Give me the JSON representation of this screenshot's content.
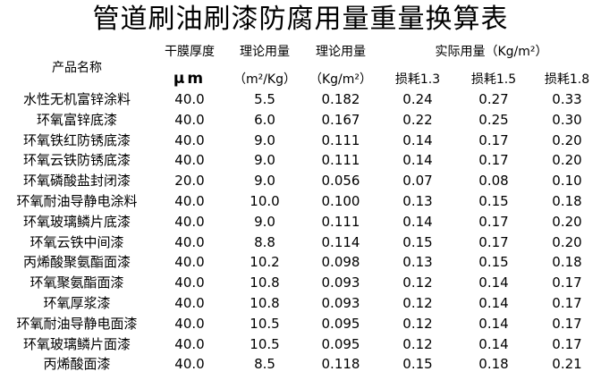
{
  "title": "管道刷油刷漆防腐用量重量换算表",
  "headers": {
    "product_name": "产品名称",
    "dry_film": "干膜厚度",
    "dry_film_unit": "μm",
    "theoretical_area": "理论用量",
    "theoretical_area_unit": "（m²/Kg）",
    "theoretical_weight": "理论用量",
    "theoretical_weight_unit": "（Kg/m²）",
    "actual_usage": "实际用量（Kg/m²）",
    "loss_13": "损耗1.3",
    "loss_15": "损耗1.5",
    "loss_18": "损耗1.8"
  },
  "rows": [
    {
      "name": "水性无机富锌涂料",
      "thickness": "40.0",
      "area": "5.5",
      "weight": "0.182",
      "l13": "0.24",
      "l15": "0.27",
      "l18": "0.33"
    },
    {
      "name": "环氧富锌底漆",
      "thickness": "40.0",
      "area": "6.0",
      "weight": "0.167",
      "l13": "0.22",
      "l15": "0.25",
      "l18": "0.30"
    },
    {
      "name": "环氧铁红防锈底漆",
      "thickness": "40.0",
      "area": "9.0",
      "weight": "0.111",
      "l13": "0.14",
      "l15": "0.17",
      "l18": "0.20"
    },
    {
      "name": "环氧云铁防锈底漆",
      "thickness": "40.0",
      "area": "9.0",
      "weight": "0.111",
      "l13": "0.14",
      "l15": "0.17",
      "l18": "0.20"
    },
    {
      "name": "环氧磷酸盐封闭漆",
      "thickness": "20.0",
      "area": "9.0",
      "weight": "0.056",
      "l13": "0.07",
      "l15": "0.08",
      "l18": "0.10"
    },
    {
      "name": "环氧耐油导静电涂料",
      "thickness": "40.0",
      "area": "10.0",
      "weight": "0.100",
      "l13": "0.13",
      "l15": "0.15",
      "l18": "0.18"
    },
    {
      "name": "环氧玻璃鳞片底漆",
      "thickness": "40.0",
      "area": "9.0",
      "weight": "0.111",
      "l13": "0.14",
      "l15": "0.17",
      "l18": "0.20"
    },
    {
      "name": "环氧云铁中间漆",
      "thickness": "40.0",
      "area": "8.8",
      "weight": "0.114",
      "l13": "0.15",
      "l15": "0.17",
      "l18": "0.20"
    },
    {
      "name": "丙烯酸聚氨酯面漆",
      "thickness": "40.0",
      "area": "10.2",
      "weight": "0.098",
      "l13": "0.13",
      "l15": "0.15",
      "l18": "0.18"
    },
    {
      "name": "环氧聚氨酯面漆",
      "thickness": "40.0",
      "area": "10.8",
      "weight": "0.093",
      "l13": "0.12",
      "l15": "0.14",
      "l18": "0.17"
    },
    {
      "name": "环氧厚浆漆",
      "thickness": "40.0",
      "area": "10.8",
      "weight": "0.093",
      "l13": "0.12",
      "l15": "0.14",
      "l18": "0.17"
    },
    {
      "name": "环氧耐油导静电面漆",
      "thickness": "40.0",
      "area": "10.5",
      "weight": "0.095",
      "l13": "0.12",
      "l15": "0.14",
      "l18": "0.17"
    },
    {
      "name": "环氧玻璃鳞片面漆",
      "thickness": "40.0",
      "area": "10.5",
      "weight": "0.095",
      "l13": "0.12",
      "l15": "0.14",
      "l18": "0.17"
    },
    {
      "name": "丙烯酸面漆",
      "thickness": "40.0",
      "area": "8.5",
      "weight": "0.118",
      "l13": "0.15",
      "l15": "0.18",
      "l18": "0.21"
    }
  ]
}
